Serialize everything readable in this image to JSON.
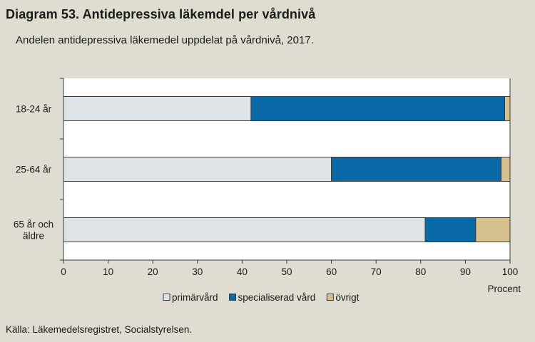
{
  "header": {
    "title": "Diagram 53. Antidepressiva läkemdel per vårdnivå",
    "subtitle": "Andelen antidepressiva läkemedel uppdelat på vårdnivå, 2017."
  },
  "footer": {
    "source": "Källa: Läkemedelsregistret, Socialstyrelsen."
  },
  "chart_data": {
    "type": "bar",
    "orientation": "horizontal",
    "stacked": true,
    "categories": [
      "18-24 år",
      "25-64 år",
      "65 år och äldre"
    ],
    "category_lines": [
      [
        "18-24 år"
      ],
      [
        "25-64 år"
      ],
      [
        "65 år och",
        "äldre"
      ]
    ],
    "series": [
      {
        "name": "primärvård",
        "legend_label": "primärvård",
        "values": [
          42,
          60,
          81
        ],
        "color": "#dde3e7"
      },
      {
        "name": "specialiserad vård",
        "legend_label": "specialiserad vård",
        "values": [
          56.8,
          38,
          11.3
        ],
        "color": "#0a6aa8"
      },
      {
        "name": "övrigt",
        "legend_label": "övrigt",
        "values": [
          1.2,
          2,
          7.7
        ],
        "color": "#d5c08e"
      }
    ],
    "xlabel": "Procent",
    "xlim": [
      0,
      100
    ],
    "xticks": [
      "0",
      "10",
      "20",
      "30",
      "40",
      "50",
      "60",
      "70",
      "80",
      "90",
      "100"
    ],
    "grid": false,
    "legend_position": "bottom",
    "plot_background": "#ffffff",
    "page_background": "#dfdcd2"
  }
}
